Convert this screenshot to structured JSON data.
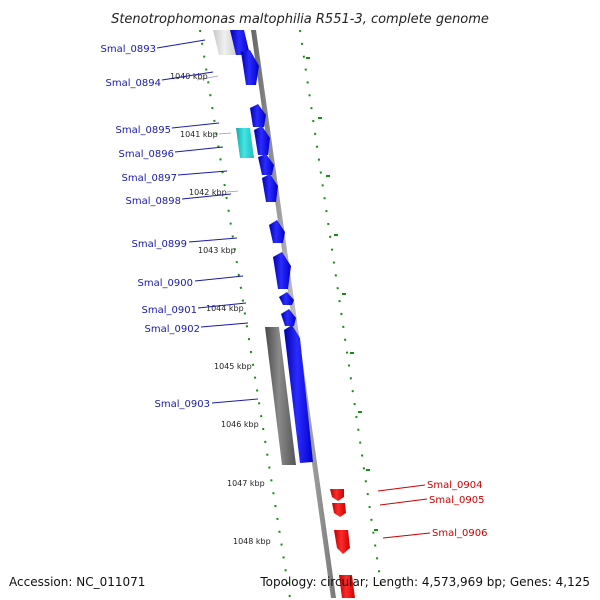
{
  "title": "Stenotrophomonas maltophilia R551-3, complete genome",
  "footer": {
    "accession": "Accession: NC_011071",
    "topology": "Topology: circular; Length: 4,573,969 bp; Genes: 4,125"
  },
  "colors": {
    "forward_gene": "#0000ee",
    "reverse_gene": "#ee0000",
    "label_forward": "#1a1aaa",
    "label_reverse": "#cc0000",
    "highlight_gene": "#22cccc",
    "gray_gene": "#666666",
    "tick_green": "#1a8a1a",
    "backbone": "#888888"
  },
  "kbp_ticks": [
    "1040 kbp",
    "1041 kbp",
    "1042 kbp",
    "1043 kbp",
    "1044 kbp",
    "1045 kbp",
    "1046 kbp",
    "1047 kbp",
    "1048 kbp"
  ],
  "gene_labels": [
    {
      "name": "Smal_0893",
      "strand": "forward"
    },
    {
      "name": "Smal_0894",
      "strand": "forward"
    },
    {
      "name": "Smal_0895",
      "strand": "forward"
    },
    {
      "name": "Smal_0896",
      "strand": "forward"
    },
    {
      "name": "Smal_0897",
      "strand": "forward"
    },
    {
      "name": "Smal_0898",
      "strand": "forward"
    },
    {
      "name": "Smal_0899",
      "strand": "forward"
    },
    {
      "name": "Smal_0900",
      "strand": "forward"
    },
    {
      "name": "Smal_0901",
      "strand": "forward"
    },
    {
      "name": "Smal_0902",
      "strand": "forward"
    },
    {
      "name": "Smal_0903",
      "strand": "forward"
    },
    {
      "name": "Smal_0904",
      "strand": "reverse"
    },
    {
      "name": "Smal_0905",
      "strand": "reverse"
    },
    {
      "name": "Smal_0906",
      "strand": "reverse"
    }
  ]
}
